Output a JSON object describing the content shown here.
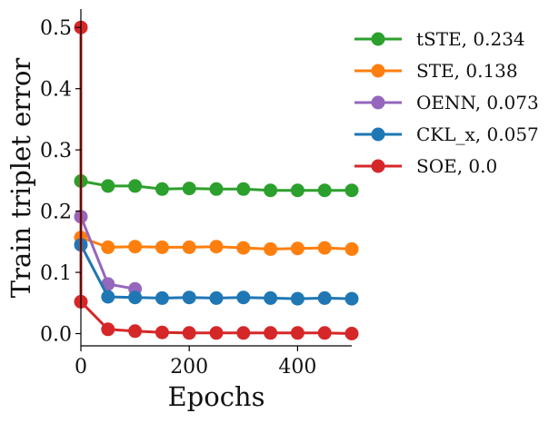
{
  "chart_data": {
    "type": "line",
    "title": "",
    "xlabel": "Epochs",
    "ylabel": "Train triplet error",
    "xlim": [
      0,
      500
    ],
    "ylim": [
      -0.02,
      0.53
    ],
    "xticks": [
      0,
      200,
      400
    ],
    "xtick_labels": [
      "0",
      "200",
      "400"
    ],
    "yticks": [
      0.0,
      0.1,
      0.2,
      0.3,
      0.4,
      0.5
    ],
    "ytick_labels": [
      "0.0",
      "0.1",
      "0.2",
      "0.3",
      "0.4",
      "0.5"
    ],
    "grid": false,
    "legend_position": "upper-right-outside",
    "series": [
      {
        "name": "tSTE",
        "legend_label": "tSTE, 0.234",
        "color": "#2ca02c",
        "x": [
          0,
          50,
          100,
          150,
          200,
          250,
          300,
          350,
          400,
          450,
          500
        ],
        "values": [
          0.249,
          0.241,
          0.241,
          0.236,
          0.237,
          0.236,
          0.236,
          0.234,
          0.234,
          0.234,
          0.234
        ]
      },
      {
        "name": "STE",
        "legend_label": "STE, 0.138",
        "color": "#ff7f0e",
        "x": [
          0,
          50,
          100,
          150,
          200,
          250,
          300,
          350,
          400,
          450,
          500
        ],
        "values": [
          0.157,
          0.141,
          0.142,
          0.141,
          0.141,
          0.142,
          0.14,
          0.138,
          0.139,
          0.14,
          0.138
        ]
      },
      {
        "name": "OENN",
        "legend_label": "OENN, 0.073",
        "color": "#9467bd",
        "x": [
          0,
          50,
          100
        ],
        "values": [
          0.191,
          0.081,
          0.073
        ]
      },
      {
        "name": "CKL_x",
        "legend_label": "CKL_x, 0.057",
        "color": "#1f77b4",
        "x": [
          0,
          50,
          100,
          150,
          200,
          250,
          300,
          350,
          400,
          450,
          500
        ],
        "values": [
          0.145,
          0.06,
          0.059,
          0.058,
          0.059,
          0.058,
          0.059,
          0.058,
          0.057,
          0.058,
          0.057
        ]
      },
      {
        "name": "SOE",
        "legend_label": "SOE, 0.0",
        "color": "#d62728",
        "x": [
          0,
          0,
          50,
          100,
          150,
          200,
          250,
          300,
          350,
          400,
          450,
          500
        ],
        "values": [
          0.5,
          0.052,
          0.007,
          0.004,
          0.002,
          0.001,
          0.001,
          0.001,
          0.001,
          0.001,
          0.001,
          0.0
        ]
      }
    ]
  }
}
